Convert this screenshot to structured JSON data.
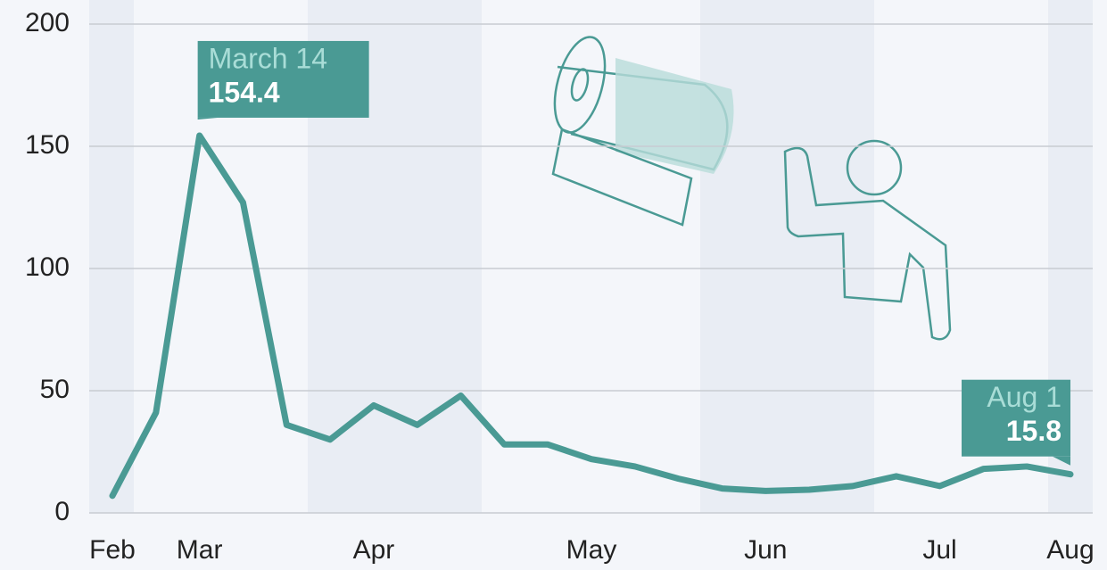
{
  "chart_data": {
    "type": "line",
    "categories": [
      "Feb",
      null,
      "Mar",
      null,
      null,
      null,
      "Apr",
      null,
      null,
      null,
      null,
      "May",
      null,
      null,
      null,
      "Jun",
      null,
      null,
      null,
      "Jul",
      null,
      null,
      "Aug"
    ],
    "series": [
      {
        "name": null,
        "color": "#4a9a94",
        "values": [
          7,
          41,
          154.4,
          127,
          36,
          30,
          44,
          36,
          48,
          28,
          28,
          22,
          19,
          14,
          10,
          9,
          9.5,
          11,
          15,
          11,
          18,
          19,
          15.8
        ]
      }
    ],
    "ylim": [
      0,
      200
    ],
    "yticks": [
      0,
      50,
      100,
      150,
      200
    ],
    "grid": true,
    "annotations": [
      {
        "index": 2,
        "date": "March 14",
        "label": "154.4"
      },
      {
        "index": 22,
        "date": "Aug 1",
        "label": "15.8"
      }
    ]
  }
}
